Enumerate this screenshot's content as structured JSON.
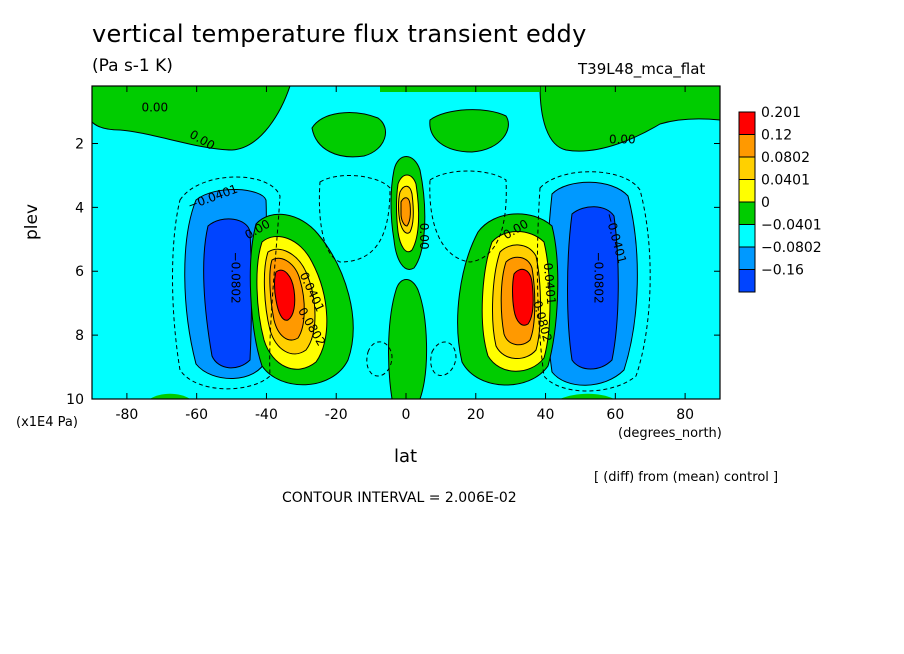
{
  "chart_data": {
    "type": "heatmap",
    "title": "vertical temperature flux transient eddy",
    "subtitle": "(Pa s-1 K)",
    "run_name": "T39L48_mca_flat",
    "xlabel": "lat",
    "x_unit": "(degrees_north)",
    "ylabel": "plev",
    "y_unit": "(x1E4 Pa)",
    "xlim": [
      -90,
      90
    ],
    "ylim": [
      10,
      0.2
    ],
    "x_ticks": [
      "-80",
      "-60",
      "-40",
      "-20",
      "0",
      "20",
      "40",
      "60",
      "80"
    ],
    "y_ticks": [
      "2",
      "4",
      "6",
      "8",
      "10"
    ],
    "colorbar": {
      "levels": [
        "0.201",
        "0.12",
        "0.0802",
        "0.0401",
        "0",
        "−0.0401",
        "−0.0802",
        "−0.16"
      ],
      "colors": [
        "#ff0000",
        "#ff9900",
        "#ffd000",
        "#ffff00",
        "#00cc00",
        "#00ffff",
        "#0099ff",
        "#0044ff"
      ]
    },
    "contour_labels": [
      "0.00",
      "0.00",
      "0.00",
      "0.00",
      "0.00",
      "0.00",
      "−0.0401",
      "−0.0401",
      "−0.0802",
      "−0.0802",
      "0.0401",
      "0.0802",
      "0.0401",
      "0.0802"
    ],
    "diff_note": "[ (diff) from (mean) control ]",
    "contour_interval": "CONTOUR INTERVAL = 2.006E-02"
  }
}
